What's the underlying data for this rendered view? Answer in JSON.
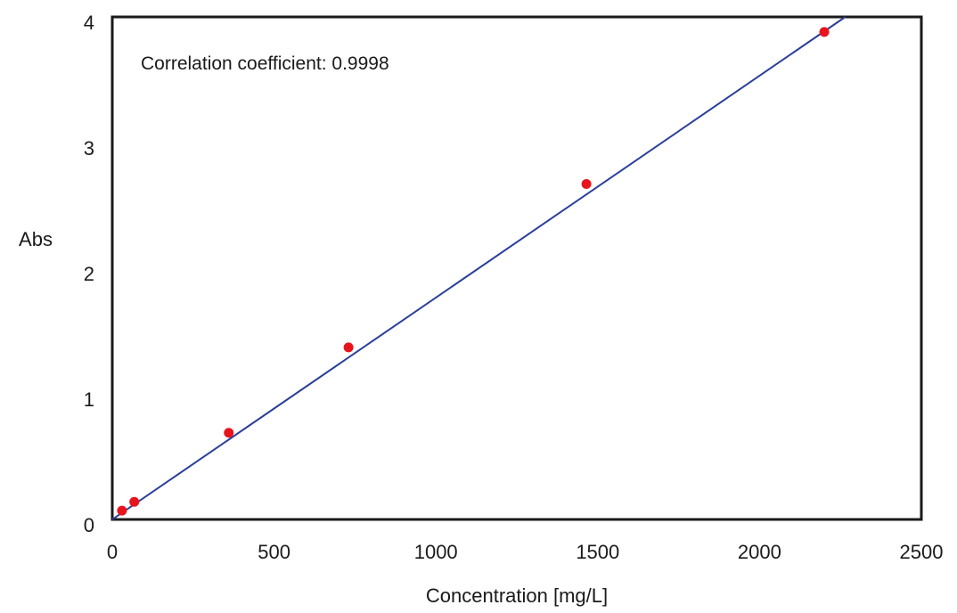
{
  "chart_data": {
    "type": "scatter",
    "title": "",
    "xlabel": "Concentration [mg/L]",
    "ylabel": "Abs",
    "xlim": [
      0,
      2500
    ],
    "ylim": [
      0,
      4
    ],
    "xticks": [
      0,
      500,
      1000,
      1500,
      2000,
      2500
    ],
    "yticks": [
      0,
      1,
      2,
      3,
      4
    ],
    "grid": false,
    "series": [
      {
        "points": [
          {
            "x": 30,
            "y": 0.07
          },
          {
            "x": 68,
            "y": 0.14
          },
          {
            "x": 360,
            "y": 0.69
          },
          {
            "x": 730,
            "y": 1.37
          },
          {
            "x": 1465,
            "y": 2.67
          },
          {
            "x": 2200,
            "y": 3.88
          }
        ],
        "color": "#e8141c"
      }
    ],
    "fit_line": {
      "x": [
        0,
        2265
      ],
      "y": [
        0.0,
        4.0
      ],
      "color": "#2a3f9a"
    },
    "annotation": "Correlation coefficient: 0.9998"
  }
}
